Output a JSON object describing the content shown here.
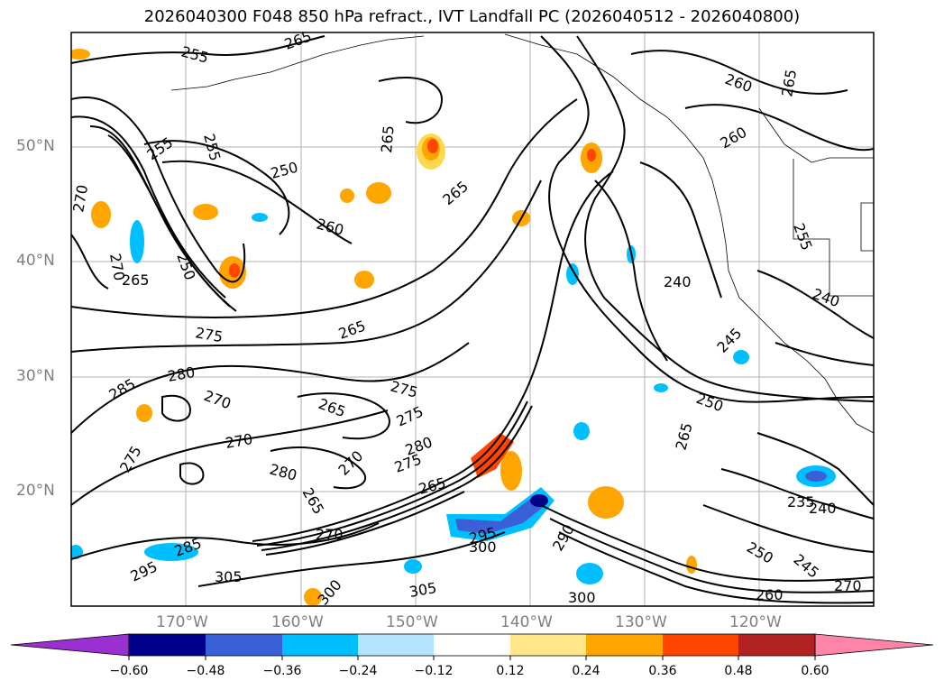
{
  "title": "2026040300 F048 850 hPa refract., IVT Landfall PC (2026040512 - 2026040800)",
  "lat_labels": [
    "50°N",
    "40°N",
    "30°N",
    "20°N"
  ],
  "lon_labels": [
    "170°W",
    "160°W",
    "150°W",
    "140°W",
    "130°W",
    "120°W"
  ],
  "contour_labels": [
    "255",
    "265",
    "260",
    "265",
    "255",
    "270",
    "255",
    "250",
    "260",
    "265",
    "265",
    "250",
    "270",
    "260",
    "265",
    "240",
    "275",
    "265",
    "255",
    "245",
    "240",
    "280",
    "270",
    "285",
    "275",
    "265",
    "250",
    "275",
    "270",
    "265",
    "280",
    "270",
    "275",
    "265",
    "280",
    "275",
    "285",
    "265",
    "270",
    "295",
    "305",
    "300",
    "300",
    "295",
    "290",
    "305",
    "300",
    "250",
    "245",
    "240",
    "235",
    "270",
    "260"
  ],
  "colorbar": {
    "ticks": [
      "−0.60",
      "−0.48",
      "−0.36",
      "−0.24",
      "−0.12",
      "0.12",
      "0.24",
      "0.36",
      "0.48",
      "0.60"
    ],
    "colors": [
      "#9b30d0",
      "#00008b",
      "#3b5fd6",
      "#00bfff",
      "#b3e5fc",
      "#ffffff",
      "#ffe78a",
      "#ffa500",
      "#ff4500",
      "#b22222",
      "#ff85a8"
    ]
  }
}
